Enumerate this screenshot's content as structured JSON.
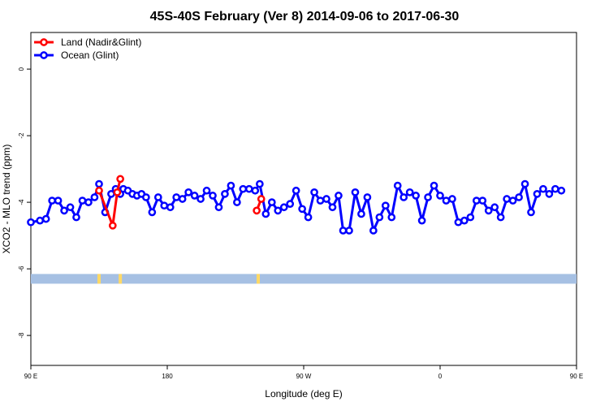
{
  "chart_data": {
    "type": "line",
    "title": "45S-40S February (Ver 8)   2014-09-06 to 2017-06-30",
    "xlabel": "Longitude (deg E)",
    "ylabel": "XCO2 - MLO trend (ppm)",
    "xlim": [
      90,
      450
    ],
    "ylim": [
      -8.9,
      1.1
    ],
    "xticks": [
      {
        "value": 90,
        "label": "90 E"
      },
      {
        "value": 180,
        "label": "180"
      },
      {
        "value": 270,
        "label": "90 W"
      },
      {
        "value": 360,
        "label": "0"
      },
      {
        "value": 450,
        "label": "90 E"
      },
      {
        "value": 540,
        "label": "180"
      }
    ],
    "yticks": [
      {
        "value": 0,
        "label": "0"
      },
      {
        "value": -2,
        "label": "-2"
      },
      {
        "value": -4,
        "label": "-4"
      },
      {
        "value": -6,
        "label": "-6"
      },
      {
        "value": -8,
        "label": "-8"
      }
    ],
    "legend_position": "top-left",
    "series": [
      {
        "name": "Land (Nadir&Glint)",
        "color": "#ff0000",
        "segments": [
          [
            [
              135,
              -3.65
            ],
            [
              144,
              -4.7
            ],
            [
              147,
              -3.7
            ],
            [
              149,
              -3.3
            ]
          ],
          [
            [
              239,
              -4.25
            ],
            [
              242,
              -3.9
            ]
          ],
          [
            [
              482,
              -3.65
            ],
            [
              490,
              -4.75
            ],
            [
              493,
              -3.7
            ],
            [
              495,
              -3.3
            ]
          ]
        ]
      },
      {
        "name": "Ocean (Glint)",
        "color": "#0000ff",
        "segments": [
          [
            [
              90,
              -4.6
            ],
            [
              96,
              -4.55
            ],
            [
              100,
              -4.5
            ],
            [
              104,
              -3.95
            ],
            [
              108,
              -3.95
            ],
            [
              112,
              -4.25
            ],
            [
              116,
              -4.15
            ],
            [
              120,
              -4.45
            ],
            [
              124,
              -3.95
            ],
            [
              128,
              -4.0
            ],
            [
              132,
              -3.85
            ],
            [
              135,
              -3.45
            ],
            [
              139,
              -4.3
            ],
            [
              143,
              -3.75
            ],
            [
              146,
              -3.6
            ],
            [
              149,
              -3.75
            ],
            [
              151,
              -3.6
            ],
            [
              154,
              -3.65
            ],
            [
              157,
              -3.75
            ],
            [
              160,
              -3.8
            ],
            [
              163,
              -3.75
            ],
            [
              166,
              -3.85
            ],
            [
              170,
              -4.3
            ],
            [
              174,
              -3.85
            ],
            [
              178,
              -4.1
            ],
            [
              182,
              -4.15
            ],
            [
              186,
              -3.85
            ],
            [
              190,
              -3.9
            ],
            [
              194,
              -3.7
            ],
            [
              198,
              -3.8
            ],
            [
              202,
              -3.9
            ],
            [
              206,
              -3.65
            ],
            [
              210,
              -3.8
            ],
            [
              214,
              -4.15
            ],
            [
              218,
              -3.75
            ],
            [
              222,
              -3.5
            ],
            [
              226,
              -4.0
            ],
            [
              230,
              -3.6
            ],
            [
              234,
              -3.6
            ],
            [
              238,
              -3.65
            ],
            [
              241,
              -3.45
            ],
            [
              245,
              -4.35
            ],
            [
              249,
              -4.0
            ],
            [
              253,
              -4.25
            ],
            [
              257,
              -4.15
            ],
            [
              261,
              -4.05
            ],
            [
              265,
              -3.65
            ],
            [
              269,
              -4.2
            ],
            [
              273,
              -4.45
            ],
            [
              277,
              -3.7
            ],
            [
              281,
              -3.95
            ],
            [
              285,
              -3.9
            ],
            [
              289,
              -4.15
            ],
            [
              293,
              -3.8
            ],
            [
              296,
              -4.85
            ],
            [
              300,
              -4.85
            ],
            [
              304,
              -3.7
            ],
            [
              308,
              -4.35
            ],
            [
              312,
              -3.85
            ],
            [
              316,
              -4.85
            ],
            [
              320,
              -4.45
            ],
            [
              324,
              -4.1
            ],
            [
              328,
              -4.45
            ],
            [
              332,
              -3.5
            ],
            [
              336,
              -3.85
            ],
            [
              340,
              -3.7
            ],
            [
              344,
              -3.8
            ],
            [
              348,
              -4.55
            ],
            [
              352,
              -3.85
            ],
            [
              356,
              -3.5
            ],
            [
              360,
              -3.8
            ],
            [
              364,
              -3.95
            ],
            [
              368,
              -3.9
            ],
            [
              372,
              -4.6
            ],
            [
              376,
              -4.55
            ],
            [
              380,
              -4.45
            ],
            [
              384,
              -3.95
            ],
            [
              388,
              -3.95
            ],
            [
              392,
              -4.25
            ],
            [
              396,
              -4.15
            ],
            [
              400,
              -4.45
            ],
            [
              404,
              -3.9
            ],
            [
              408,
              -3.95
            ],
            [
              412,
              -3.85
            ],
            [
              416,
              -3.45
            ],
            [
              420,
              -4.3
            ],
            [
              424,
              -3.75
            ],
            [
              428,
              -3.6
            ],
            [
              432,
              -3.75
            ],
            [
              436,
              -3.6
            ],
            [
              440,
              -3.65
            ]
          ]
        ]
      }
    ],
    "surface_bar": {
      "y": -6.3,
      "ocean_color": "#a6c0e3",
      "land_color": "#ffd966",
      "land_x": [
        135,
        149,
        240,
        481,
        495
      ]
    }
  }
}
